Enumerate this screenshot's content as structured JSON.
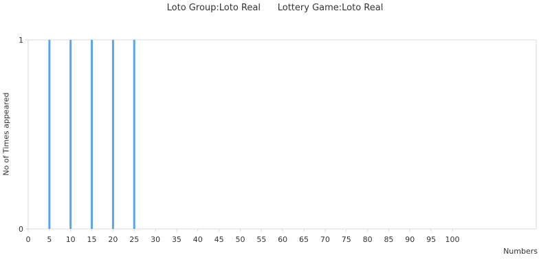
{
  "chart_data": {
    "type": "bar",
    "title": "Loto Group:Loto Real      Lottery Game:Loto Real",
    "xlabel": "Numbers",
    "ylabel": "No of Times appeared",
    "x": [
      5,
      10,
      15,
      20,
      25
    ],
    "values": [
      1,
      1,
      1,
      1,
      1
    ],
    "x_ticks": [
      0,
      5,
      10,
      15,
      20,
      25,
      30,
      35,
      40,
      45,
      50,
      55,
      60,
      65,
      70,
      75,
      80,
      85,
      90,
      95,
      100
    ],
    "y_ticks": [
      0,
      1
    ],
    "xlim": [
      0,
      100
    ],
    "ylim": [
      0,
      1
    ],
    "grid": false,
    "colors": {
      "bar": "#5aa5e6",
      "axis": "#d9d9d9",
      "text": "#333333"
    }
  }
}
